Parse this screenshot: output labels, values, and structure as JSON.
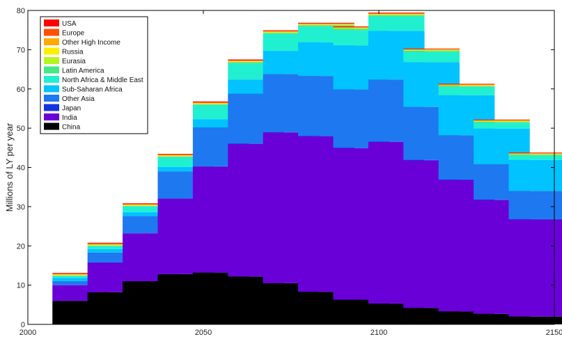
{
  "chart_data": {
    "type": "bar",
    "stacked": true,
    "xlabel": "",
    "ylabel": "Millions of LY per year",
    "xlim": [
      2000,
      2150
    ],
    "ylim": [
      0,
      80
    ],
    "x_ticks": [
      2000,
      2050,
      2100,
      2150
    ],
    "y_ticks": [
      0,
      10,
      20,
      30,
      40,
      50,
      60,
      70,
      80
    ],
    "legend_position": "top-left",
    "categories": [
      2015,
      2025,
      2035,
      2045,
      2055,
      2065,
      2075,
      2085,
      2095,
      2105,
      2115,
      2125,
      2135,
      2145
    ],
    "series": [
      {
        "name": "China",
        "color": "#000000",
        "values": [
          6.0,
          8.2,
          11.0,
          12.8,
          13.2,
          12.2,
          10.5,
          8.3,
          6.3,
          5.3,
          4.2,
          3.3,
          2.7,
          2.0
        ]
      },
      {
        "name": "India",
        "color": "#6a00d8",
        "values": [
          4.0,
          7.5,
          12.2,
          19.2,
          27.0,
          33.8,
          38.4,
          39.6,
          38.6,
          41.2,
          37.6,
          33.5,
          29.0,
          24.7
        ]
      },
      {
        "name": "Japan",
        "color": "#1533dd",
        "values": [
          0.05,
          0.1,
          0.1,
          0.1,
          0.1,
          0.1,
          0.1,
          0.1,
          0.1,
          0.1,
          0.1,
          0.1,
          0.1,
          0.1
        ]
      },
      {
        "name": "Other Asia",
        "color": "#1e78f0",
        "values": [
          1.0,
          2.5,
          4.3,
          6.9,
          9.9,
          12.7,
          14.8,
          15.3,
          14.9,
          15.8,
          13.5,
          11.3,
          9.0,
          7.2
        ]
      },
      {
        "name": "Sub-Saharan Africa",
        "color": "#00c3ff",
        "values": [
          0.8,
          0.9,
          1.0,
          1.1,
          2.1,
          3.6,
          5.9,
          8.6,
          11.2,
          12.4,
          11.4,
          10.2,
          9.1,
          7.9
        ]
      },
      {
        "name": "North Africa & Middle East",
        "color": "#21f0d0",
        "values": [
          0.5,
          0.8,
          1.5,
          2.5,
          3.6,
          4.1,
          4.3,
          4.0,
          3.9,
          3.7,
          2.7,
          2.1,
          1.5,
          1.2
        ]
      },
      {
        "name": "Latin America",
        "color": "#44e884",
        "values": [
          0.1,
          0.1,
          0.1,
          0.2,
          0.2,
          0.3,
          0.3,
          0.3,
          0.3,
          0.3,
          0.2,
          0.2,
          0.2,
          0.1
        ]
      },
      {
        "name": "Eurasia",
        "color": "#b6f520",
        "values": [
          0.1,
          0.1,
          0.1,
          0.1,
          0.1,
          0.1,
          0.1,
          0.1,
          0.1,
          0.1,
          0.1,
          0.1,
          0.1,
          0.1
        ]
      },
      {
        "name": "Russia",
        "color": "#ffee00",
        "values": [
          0.1,
          0.1,
          0.1,
          0.1,
          0.1,
          0.1,
          0.1,
          0.1,
          0.1,
          0.1,
          0.1,
          0.1,
          0.1,
          0.1
        ]
      },
      {
        "name": "Other High Income",
        "color": "#ffaa00",
        "values": [
          0.2,
          0.2,
          0.2,
          0.2,
          0.2,
          0.2,
          0.2,
          0.2,
          0.2,
          0.2,
          0.2,
          0.2,
          0.2,
          0.2
        ]
      },
      {
        "name": "Europe",
        "color": "#ff5000",
        "values": [
          0.1,
          0.1,
          0.1,
          0.1,
          0.1,
          0.1,
          0.1,
          0.1,
          0.1,
          0.1,
          0.1,
          0.1,
          0.1,
          0.1
        ]
      },
      {
        "name": "USA",
        "color": "#ff0000",
        "values": [
          0.15,
          0.2,
          0.15,
          0.15,
          0.2,
          0.2,
          0.15,
          0.15,
          0.15,
          0.15,
          0.1,
          0.1,
          0.1,
          0.1
        ]
      }
    ]
  }
}
